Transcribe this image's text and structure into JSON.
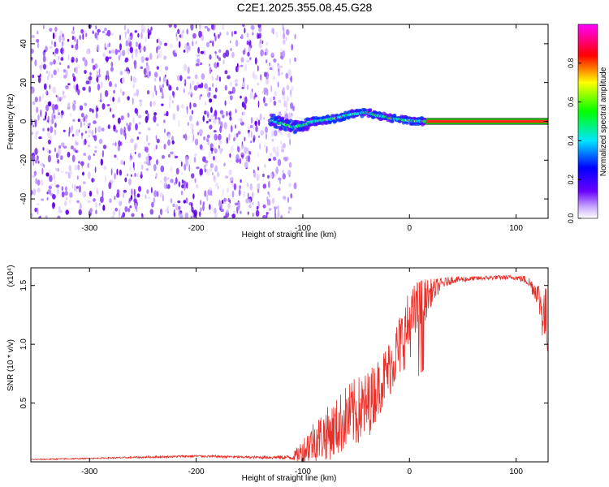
{
  "title": "C2E1.2025.355.08.45.G28",
  "colors": {
    "snr_line": "#e8302a",
    "ridge_low": "#5a00e0",
    "ridge_high": "#ff0000",
    "speckle": "#6a00ff",
    "axis": "#000000"
  },
  "chart_data": [
    {
      "id": "spectrogram",
      "type": "heatmap",
      "title": "C2E1.2025.355.08.45.G28",
      "xlabel": "Height of straight line (km)",
      "ylabel": "Frequency (Hz)",
      "xlim": [
        -355,
        130
      ],
      "ylim": [
        -50,
        50
      ],
      "xticks": [
        -300,
        -200,
        -100,
        0,
        100
      ],
      "xtick_labels": [
        "-300",
        "-200",
        "-100",
        "0",
        "100"
      ],
      "yticks": [
        -40,
        -20,
        0,
        20,
        40
      ],
      "ytick_labels": [
        "-40",
        "-20",
        "0",
        "20",
        "40"
      ],
      "colorbar": {
        "label": "Normalized spectral amplitude",
        "range": [
          0,
          1
        ],
        "ticks": [
          0,
          0.2,
          0.4,
          0.6,
          0.8
        ],
        "tick_labels": [
          "0.0",
          "0.2",
          "0.4",
          "0.6",
          "0.8"
        ],
        "colormap": "rainbow (white-violet-blue-cyan-green-yellow-red-magenta)"
      },
      "noise_region": [
        -355,
        -115
      ],
      "ridge": {
        "x": [
          -130,
          -120,
          -110,
          -100,
          -90,
          -80,
          -70,
          -60,
          -50,
          -40,
          -30,
          -20,
          -10,
          0,
          10,
          20,
          130
        ],
        "freq": [
          0.5,
          -1,
          -3,
          -2,
          0,
          0.5,
          1.5,
          3,
          4,
          4.5,
          3,
          2,
          1,
          0.5,
          0,
          0,
          0
        ]
      }
    },
    {
      "id": "snr",
      "type": "line",
      "xlabel": "Height of straight line (km)",
      "ylabel": "SNR (10 * v/v)",
      "y_multiplier": "(x10⁴)",
      "xlim": [
        -355,
        130
      ],
      "ylim": [
        0,
        1.65
      ],
      "xticks": [
        -300,
        -200,
        -100,
        0,
        100
      ],
      "xtick_labels": [
        "-300",
        "-200",
        "-100",
        "0",
        "100"
      ],
      "yticks": [
        0.5,
        1.0,
        1.5
      ],
      "ytick_labels": [
        "0.5",
        "1.0",
        "1.5"
      ],
      "series": [
        {
          "x": [
            -355,
            -300,
            -250,
            -200,
            -150,
            -110,
            -100,
            -90,
            -80,
            -70,
            -60,
            -50,
            -40,
            -30,
            -20,
            -10,
            0,
            10,
            20,
            30,
            40,
            60,
            80,
            100,
            110,
            120,
            125,
            130
          ],
          "y": [
            0.02,
            0.03,
            0.04,
            0.05,
            0.04,
            0.04,
            0.1,
            0.2,
            0.25,
            0.3,
            0.4,
            0.45,
            0.5,
            0.65,
            0.8,
            1.0,
            1.2,
            1.35,
            1.45,
            1.52,
            1.55,
            1.56,
            1.57,
            1.57,
            1.55,
            1.45,
            1.3,
            1.2
          ],
          "noise": [
            0.005,
            0.005,
            0.008,
            0.01,
            0.01,
            0.02,
            0.12,
            0.18,
            0.22,
            0.25,
            0.28,
            0.3,
            0.3,
            0.25,
            0.25,
            0.28,
            0.3,
            0.25,
            0.12,
            0.05,
            0.03,
            0.02,
            0.02,
            0.02,
            0.04,
            0.1,
            0.25,
            0.3
          ]
        }
      ]
    }
  ]
}
